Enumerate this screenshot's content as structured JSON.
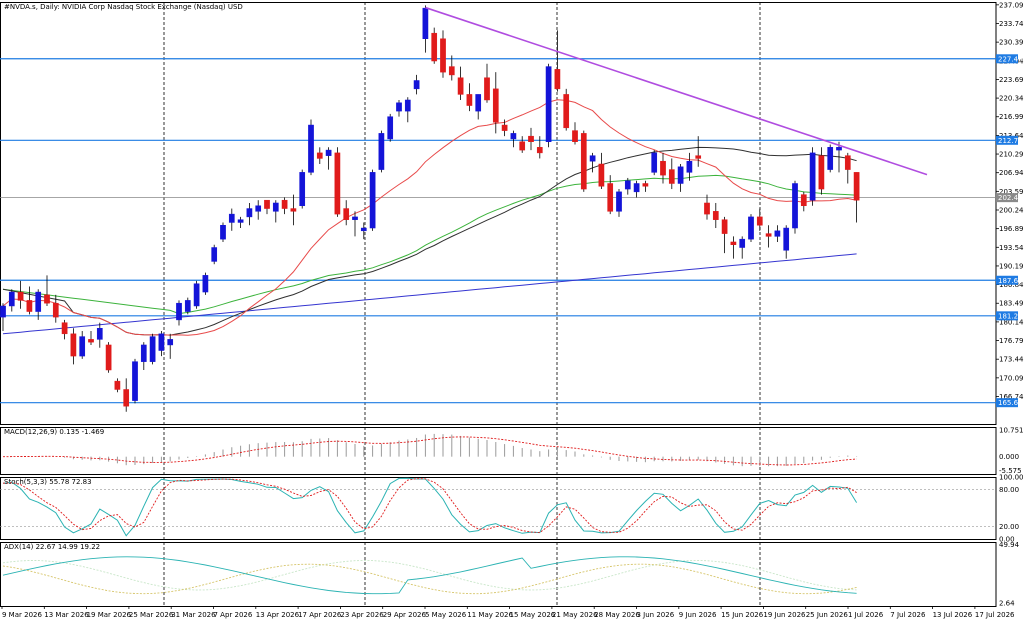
{
  "chart_data": {
    "type": "candlestick",
    "title": "#NVDA.s, Daily: NVIDIA Corp Nasdaq Stock Exchange (Nasdaq) USD",
    "ylim": [
      161.8,
      237.6
    ],
    "y_ticks": [
      "237.09",
      "233.74",
      "230.39",
      "227.04",
      "223.69",
      "220.34",
      "216.99",
      "213.64",
      "210.29",
      "206.94",
      "203.59",
      "200.24",
      "196.89",
      "193.54",
      "190.19",
      "186.84",
      "183.49",
      "180.14",
      "176.79",
      "173.44",
      "170.09",
      "166.74"
    ],
    "x_labels": [
      "9 Mar 2026",
      "13 Mar 2026",
      "19 Mar 2026",
      "25 Mar 2026",
      "31 Mar 2026",
      "7 Apr 2026",
      "13 Apr 2026",
      "17 Apr 2026",
      "23 Apr 2026",
      "29 Apr 2026",
      "5 May 2026",
      "11 May 2026",
      "15 May 2026",
      "21 May 2026",
      "28 May 2026",
      "3 Jun 2026",
      "9 Jun 2026",
      "15 Jun 2026",
      "19 Jun 2026",
      "25 Jun 2026",
      "1 Jul 2026",
      "7 Jul 2026",
      "13 Jul 2026",
      "17 Jul 2026"
    ],
    "ohlc": [
      [
        181.0,
        183.5,
        178.5,
        183.0
      ],
      [
        183.0,
        186.0,
        182.0,
        185.5
      ],
      [
        185.5,
        187.5,
        182.5,
        184.0
      ],
      [
        184.0,
        186.5,
        181.5,
        182.0
      ],
      [
        182.0,
        186.0,
        180.5,
        185.5
      ],
      [
        185.0,
        188.5,
        183.0,
        183.5
      ],
      [
        183.5,
        185.0,
        180.0,
        181.0
      ],
      [
        180.0,
        180.5,
        177.0,
        178.0
      ],
      [
        178.0,
        179.0,
        172.5,
        174.0
      ],
      [
        174.0,
        178.5,
        173.5,
        177.5
      ],
      [
        177.0,
        178.5,
        176.0,
        176.5
      ],
      [
        177.0,
        180.0,
        175.5,
        179.0
      ],
      [
        176.0,
        176.5,
        171.0,
        171.5
      ],
      [
        169.5,
        170.0,
        167.5,
        168.0
      ],
      [
        168.0,
        170.0,
        164.0,
        165.0
      ],
      [
        166.0,
        173.5,
        165.5,
        173.0
      ],
      [
        173.0,
        176.5,
        171.5,
        176.0
      ],
      [
        173.0,
        178.0,
        172.5,
        177.5
      ],
      [
        175.0,
        178.5,
        174.0,
        178.0
      ],
      [
        176.0,
        178.0,
        173.5,
        177.0
      ],
      [
        180.5,
        184.0,
        179.5,
        183.5
      ],
      [
        182.0,
        184.5,
        181.5,
        184.0
      ],
      [
        183.0,
        187.5,
        182.5,
        187.0
      ],
      [
        185.5,
        189.0,
        185.0,
        188.5
      ],
      [
        191.0,
        194.0,
        190.5,
        193.5
      ],
      [
        195.0,
        198.0,
        194.5,
        197.5
      ],
      [
        198.0,
        200.5,
        196.5,
        199.5
      ],
      [
        198.0,
        199.0,
        197.0,
        198.5
      ],
      [
        199.0,
        201.5,
        197.5,
        200.5
      ],
      [
        200.0,
        202.0,
        198.5,
        201.0
      ],
      [
        202.0,
        202.0,
        199.5,
        200.5
      ],
      [
        200.0,
        202.0,
        198.0,
        201.5
      ],
      [
        202.0,
        202.5,
        199.5,
        200.5
      ],
      [
        200.5,
        203.0,
        197.5,
        200.0
      ],
      [
        201.0,
        207.5,
        200.5,
        207.0
      ],
      [
        207.0,
        216.5,
        206.5,
        215.5
      ],
      [
        210.5,
        211.5,
        208.5,
        209.5
      ],
      [
        210.0,
        211.5,
        207.5,
        211.0
      ],
      [
        210.5,
        211.5,
        199.0,
        199.5
      ],
      [
        200.5,
        202.0,
        197.5,
        198.5
      ],
      [
        198.5,
        200.0,
        195.5,
        199.0
      ],
      [
        196.5,
        198.0,
        195.0,
        197.0
      ],
      [
        197.0,
        207.5,
        196.5,
        207.0
      ],
      [
        207.5,
        214.5,
        207.0,
        214.0
      ],
      [
        213.0,
        217.5,
        212.5,
        217.0
      ],
      [
        218.0,
        220.0,
        217.0,
        219.5
      ],
      [
        218.0,
        220.5,
        216.0,
        220.0
      ],
      [
        222.0,
        224.5,
        221.0,
        223.5
      ],
      [
        231.0,
        237.0,
        228.5,
        236.5
      ],
      [
        232.0,
        233.0,
        226.5,
        227.0
      ],
      [
        231.0,
        232.5,
        224.0,
        225.0
      ],
      [
        226.0,
        228.0,
        223.5,
        224.5
      ],
      [
        224.0,
        226.0,
        220.0,
        221.0
      ],
      [
        221.0,
        223.0,
        218.0,
        219.0
      ],
      [
        218.0,
        221.0,
        216.5,
        221.0
      ],
      [
        224.0,
        226.5,
        219.5,
        220.0
      ],
      [
        222.0,
        225.0,
        214.0,
        216.0
      ],
      [
        215.5,
        216.5,
        213.5,
        214.5
      ],
      [
        213.0,
        214.5,
        211.5,
        214.0
      ],
      [
        212.5,
        213.5,
        210.5,
        211.0
      ],
      [
        213.5,
        215.0,
        211.0,
        212.5
      ],
      [
        211.5,
        213.5,
        209.5,
        210.5
      ],
      [
        212.5,
        226.5,
        211.5,
        226.0
      ],
      [
        225.5,
        232.5,
        221.5,
        222.0
      ],
      [
        221.0,
        222.0,
        214.5,
        215.0
      ],
      [
        214.5,
        216.0,
        212.0,
        212.5
      ],
      [
        214.0,
        214.5,
        203.5,
        204.0
      ],
      [
        209.0,
        210.5,
        207.0,
        210.0
      ],
      [
        208.5,
        210.5,
        204.0,
        204.5
      ],
      [
        205.0,
        206.5,
        199.5,
        200.0
      ],
      [
        200.0,
        204.0,
        199.0,
        203.5
      ],
      [
        204.0,
        206.0,
        203.0,
        205.5
      ],
      [
        203.5,
        205.5,
        202.5,
        205.0
      ],
      [
        205.0,
        205.5,
        203.5,
        204.5
      ],
      [
        207.0,
        211.0,
        206.5,
        210.5
      ],
      [
        209.0,
        210.5,
        205.0,
        206.5
      ],
      [
        207.5,
        209.5,
        204.0,
        205.0
      ],
      [
        205.0,
        208.5,
        203.5,
        208.0
      ],
      [
        207.0,
        210.5,
        205.5,
        209.0
      ],
      [
        210.0,
        213.5,
        208.0,
        209.5
      ],
      [
        201.5,
        203.0,
        198.5,
        199.5
      ],
      [
        200.0,
        201.5,
        197.0,
        198.5
      ],
      [
        198.5,
        199.0,
        192.5,
        196.0
      ],
      [
        194.5,
        195.5,
        191.5,
        194.0
      ],
      [
        193.5,
        195.5,
        191.5,
        195.0
      ],
      [
        195.0,
        199.5,
        194.5,
        199.0
      ],
      [
        199.0,
        200.5,
        196.5,
        197.5
      ],
      [
        196.0,
        197.5,
        193.5,
        195.5
      ],
      [
        195.5,
        197.5,
        194.5,
        196.5
      ],
      [
        193.0,
        197.5,
        191.5,
        197.0
      ],
      [
        197.0,
        205.5,
        196.0,
        205.0
      ],
      [
        203.0,
        203.5,
        200.0,
        201.0
      ],
      [
        202.0,
        211.5,
        201.0,
        210.5
      ],
      [
        210.0,
        211.5,
        203.0,
        204.0
      ],
      [
        207.5,
        212.0,
        207.0,
        211.5
      ],
      [
        211.0,
        212.5,
        207.0,
        211.5
      ],
      [
        210.0,
        210.5,
        205.0,
        207.5
      ],
      [
        207.0,
        207.0,
        198.0,
        202.0
      ]
    ],
    "price_lines": [
      {
        "label": "227.40",
        "value": 227.4
      },
      {
        "label": "212.76",
        "value": 212.76
      },
      {
        "label": "187.62",
        "value": 187.62
      },
      {
        "label": "181.23",
        "value": 181.23
      },
      {
        "label": "165.63",
        "value": 165.63
      }
    ],
    "current_price": {
      "label": "202.46",
      "value": 202.46
    },
    "trendline": {
      "start": [
        48,
        236.6
      ],
      "end": [
        105,
        206.6
      ]
    },
    "macd": {
      "title": "MACD(12,26,9) 0.135 -1.469",
      "ylim": [
        -7,
        12
      ],
      "ticks": [
        "10.751",
        "0.000",
        "-5.575"
      ]
    },
    "stoch": {
      "title": "Stoch(5,3,3) 55.78 72.83",
      "ylim": [
        0,
        100
      ],
      "ticks": [
        "100.00",
        "80.00",
        "20.00",
        "0.00"
      ]
    },
    "adx": {
      "title": "ADX(14) 22.67 14.99 19.22",
      "ylim": [
        0,
        52
      ],
      "ticks": [
        "49.94",
        "2.64"
      ]
    },
    "colors": {
      "bull": "#1414d8",
      "bear": "#e01b1b",
      "ma_fast": "#e84a4a",
      "ma_mid": "#303030",
      "ma_slow_green": "#3cb33c",
      "ma_slow_blue": "#3535d0",
      "trend": "#b04de0",
      "hline": "#1e7be3"
    }
  }
}
